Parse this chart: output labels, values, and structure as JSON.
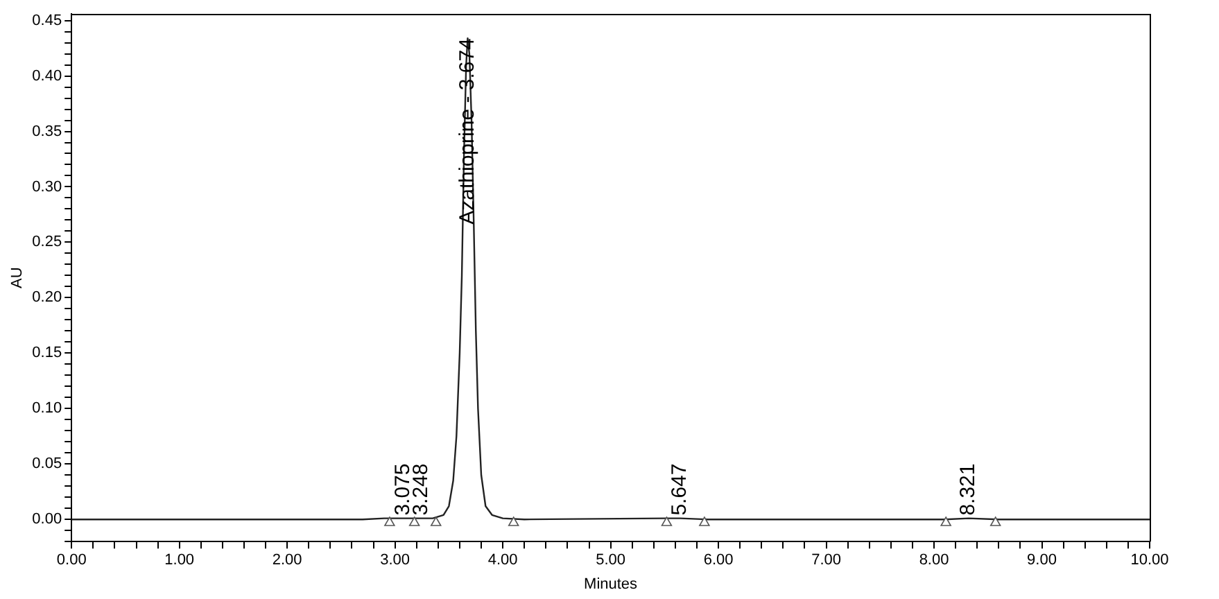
{
  "chart_data": {
    "type": "line",
    "xlabel": "Minutes",
    "ylabel": "AU",
    "xlim": [
      0,
      10
    ],
    "ylim": [
      -0.02,
      0.456
    ],
    "xticks": [
      {
        "value": 0,
        "label": "0.00"
      },
      {
        "value": 0.2,
        "label": null
      },
      {
        "value": 0.4,
        "label": null
      },
      {
        "value": 0.6,
        "label": null
      },
      {
        "value": 0.8,
        "label": null
      },
      {
        "value": 1,
        "label": "1.00"
      },
      {
        "value": 1.2,
        "label": null
      },
      {
        "value": 1.4,
        "label": null
      },
      {
        "value": 1.6,
        "label": null
      },
      {
        "value": 1.8,
        "label": null
      },
      {
        "value": 2,
        "label": "2.00"
      },
      {
        "value": 2.2,
        "label": null
      },
      {
        "value": 2.4,
        "label": null
      },
      {
        "value": 2.6,
        "label": null
      },
      {
        "value": 2.8,
        "label": null
      },
      {
        "value": 3,
        "label": "3.00"
      },
      {
        "value": 3.2,
        "label": null
      },
      {
        "value": 3.4,
        "label": null
      },
      {
        "value": 3.6,
        "label": null
      },
      {
        "value": 3.8,
        "label": null
      },
      {
        "value": 4,
        "label": "4.00"
      },
      {
        "value": 4.2,
        "label": null
      },
      {
        "value": 4.4,
        "label": null
      },
      {
        "value": 4.6,
        "label": null
      },
      {
        "value": 4.8,
        "label": null
      },
      {
        "value": 5,
        "label": "5.00"
      },
      {
        "value": 5.2,
        "label": null
      },
      {
        "value": 5.4,
        "label": null
      },
      {
        "value": 5.6,
        "label": null
      },
      {
        "value": 5.8,
        "label": null
      },
      {
        "value": 6,
        "label": "6.00"
      },
      {
        "value": 6.2,
        "label": null
      },
      {
        "value": 6.4,
        "label": null
      },
      {
        "value": 6.6,
        "label": null
      },
      {
        "value": 6.8,
        "label": null
      },
      {
        "value": 7,
        "label": "7.00"
      },
      {
        "value": 7.2,
        "label": null
      },
      {
        "value": 7.4,
        "label": null
      },
      {
        "value": 7.6,
        "label": null
      },
      {
        "value": 7.8,
        "label": null
      },
      {
        "value": 8,
        "label": "8.00"
      },
      {
        "value": 8.2,
        "label": null
      },
      {
        "value": 8.4,
        "label": null
      },
      {
        "value": 8.6,
        "label": null
      },
      {
        "value": 8.8,
        "label": null
      },
      {
        "value": 9,
        "label": "9.00"
      },
      {
        "value": 9.2,
        "label": null
      },
      {
        "value": 9.4,
        "label": null
      },
      {
        "value": 9.6,
        "label": null
      },
      {
        "value": 9.8,
        "label": null
      },
      {
        "value": 10,
        "label": "10.00"
      }
    ],
    "yticks": [
      {
        "value": 0,
        "label": "0.00"
      },
      {
        "value": 0.01,
        "label": null
      },
      {
        "value": 0.02,
        "label": null
      },
      {
        "value": 0.03,
        "label": null
      },
      {
        "value": 0.04,
        "label": null
      },
      {
        "value": 0.05,
        "label": "0.05"
      },
      {
        "value": 0.06,
        "label": null
      },
      {
        "value": 0.07,
        "label": null
      },
      {
        "value": 0.08,
        "label": null
      },
      {
        "value": 0.09,
        "label": null
      },
      {
        "value": 0.1,
        "label": "0.10"
      },
      {
        "value": 0.11,
        "label": null
      },
      {
        "value": 0.12,
        "label": null
      },
      {
        "value": 0.13,
        "label": null
      },
      {
        "value": 0.14,
        "label": null
      },
      {
        "value": 0.15,
        "label": "0.15"
      },
      {
        "value": 0.16,
        "label": null
      },
      {
        "value": 0.17,
        "label": null
      },
      {
        "value": 0.18,
        "label": null
      },
      {
        "value": 0.19,
        "label": null
      },
      {
        "value": 0.2,
        "label": "0.20"
      },
      {
        "value": 0.21,
        "label": null
      },
      {
        "value": 0.22,
        "label": null
      },
      {
        "value": 0.23,
        "label": null
      },
      {
        "value": 0.24,
        "label": null
      },
      {
        "value": 0.25,
        "label": "0.25"
      },
      {
        "value": 0.26,
        "label": null
      },
      {
        "value": 0.27,
        "label": null
      },
      {
        "value": 0.28,
        "label": null
      },
      {
        "value": 0.29,
        "label": null
      },
      {
        "value": 0.3,
        "label": "0.30"
      },
      {
        "value": 0.31,
        "label": null
      },
      {
        "value": 0.32,
        "label": null
      },
      {
        "value": 0.33,
        "label": null
      },
      {
        "value": 0.34,
        "label": null
      },
      {
        "value": 0.35,
        "label": "0.35"
      },
      {
        "value": 0.36,
        "label": null
      },
      {
        "value": 0.37,
        "label": null
      },
      {
        "value": 0.38,
        "label": null
      },
      {
        "value": 0.39,
        "label": null
      },
      {
        "value": 0.4,
        "label": "0.40"
      },
      {
        "value": 0.41,
        "label": null
      },
      {
        "value": 0.42,
        "label": null
      },
      {
        "value": 0.43,
        "label": null
      },
      {
        "value": 0.44,
        "label": null
      },
      {
        "value": 0.45,
        "label": "0.45"
      },
      {
        "value": -0.01,
        "label": null
      },
      {
        "value": -0.02,
        "label": null
      }
    ],
    "grid": false,
    "legend": false,
    "series": [
      {
        "color": "#222222",
        "marker": "none",
        "x": [
          0,
          2.7,
          2.9,
          3.075,
          3.2,
          3.248,
          3.35,
          3.45,
          3.5,
          3.54,
          3.57,
          3.6,
          3.62,
          3.64,
          3.66,
          3.674,
          3.69,
          3.71,
          3.73,
          3.75,
          3.77,
          3.8,
          3.84,
          3.9,
          4.0,
          4.2,
          5.5,
          5.647,
          5.9,
          8.1,
          8.321,
          8.6,
          10
        ],
        "values": [
          0,
          0,
          0.001,
          0.001,
          0.001,
          0.001,
          0.001,
          0.004,
          0.012,
          0.035,
          0.075,
          0.15,
          0.22,
          0.33,
          0.41,
          0.434,
          0.42,
          0.36,
          0.27,
          0.17,
          0.1,
          0.04,
          0.012,
          0.004,
          0.001,
          0,
          0.001,
          0.001,
          0,
          0,
          0.001,
          0,
          0
        ]
      },
      {
        "type": "scatter",
        "color": "#555555",
        "marker": "triangle",
        "x": [
          2.95,
          3.18,
          3.38,
          4.1,
          5.52,
          5.87,
          8.11,
          8.57
        ],
        "values": [
          -0.003,
          -0.003,
          -0.003,
          -0.003,
          -0.003,
          -0.003,
          -0.003,
          -0.003
        ]
      }
    ],
    "annotations": [
      {
        "text": "Azathioprine - 3.674",
        "x": 3.674,
        "y": 0.434
      },
      {
        "text": "3.075",
        "x": 3.075,
        "y": 0.001
      },
      {
        "text": "3.248",
        "x": 3.248,
        "y": 0.001
      },
      {
        "text": "5.647",
        "x": 5.647,
        "y": 0.001
      },
      {
        "text": "8.321",
        "x": 8.321,
        "y": 0.001
      }
    ]
  }
}
